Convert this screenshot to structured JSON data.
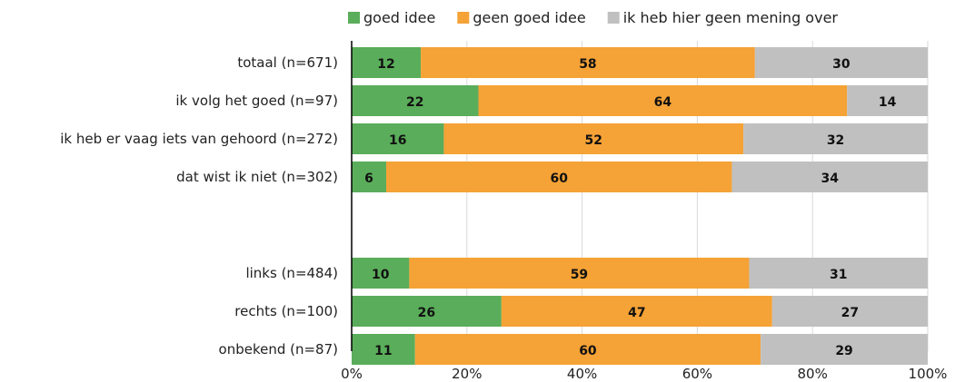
{
  "chart_data": {
    "type": "bar",
    "orientation": "horizontal",
    "stacked": true,
    "normalized": true,
    "categories": [
      "totaal (n=671)",
      "ik volg het goed (n=97)",
      "ik heb er vaag iets van gehoord (n=272)",
      "dat wist ik niet (n=302)",
      "links (n=484)",
      "rechts (n=100)",
      "onbekend (n=87)"
    ],
    "series": [
      {
        "name": "goed idee",
        "color": "#5aad5a",
        "values": [
          12,
          22,
          16,
          6,
          10,
          26,
          11
        ]
      },
      {
        "name": "geen goed idee",
        "color": "#f5a236",
        "values": [
          58,
          64,
          52,
          60,
          59,
          47,
          60
        ]
      },
      {
        "name": "ik heb hier geen mening over",
        "color": "#c0c0c0",
        "values": [
          30,
          14,
          32,
          34,
          31,
          27,
          29
        ]
      }
    ],
    "group_gap_after_index": 3,
    "xlim": [
      0,
      100
    ],
    "x_ticks": [
      "0%",
      "20%",
      "40%",
      "60%",
      "80%",
      "100%"
    ],
    "grid": true,
    "legend_position": "top"
  }
}
